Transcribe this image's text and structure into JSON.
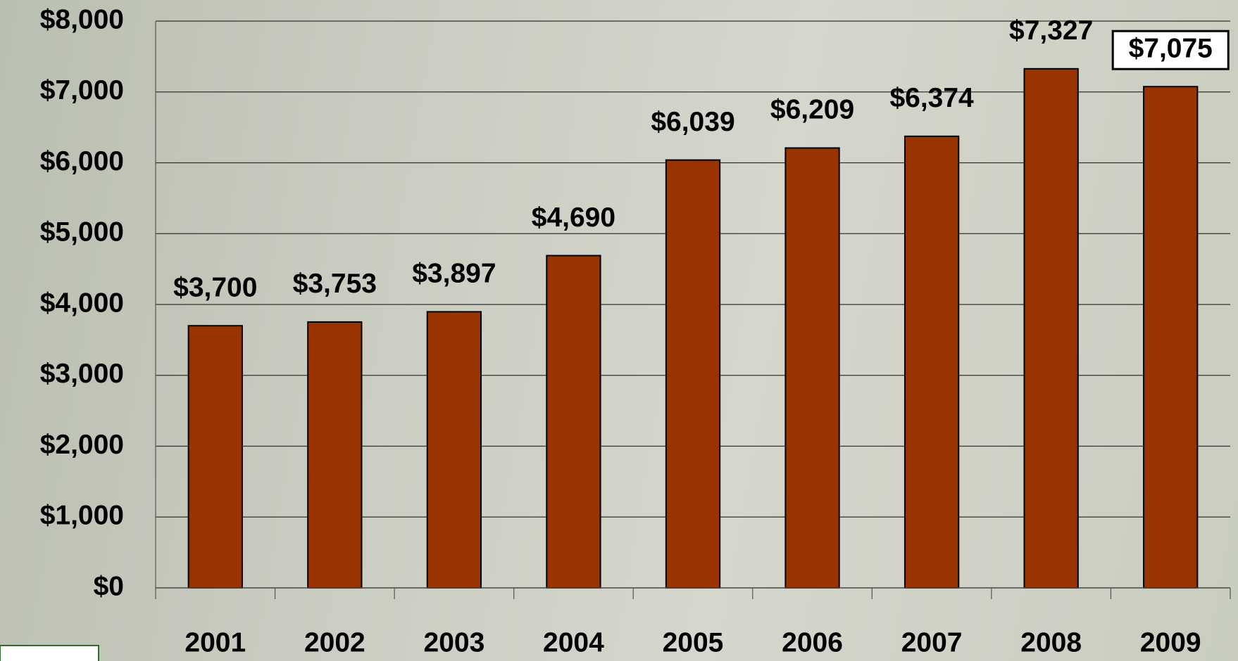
{
  "chart_data": {
    "type": "bar",
    "categories": [
      "2001",
      "2002",
      "2003",
      "2004",
      "2005",
      "2006",
      "2007",
      "2008",
      "2009"
    ],
    "values": [
      3700,
      3753,
      3897,
      4690,
      6039,
      6209,
      6374,
      7327,
      7075
    ],
    "value_labels": [
      "$3,700",
      "$3,753",
      "$3,897",
      "$4,690",
      "$6,039",
      "$6,209",
      "$6,374",
      "$7,327",
      "$7,075"
    ],
    "color": "#993300",
    "ylim": [
      0,
      8000
    ],
    "yticks": [
      {
        "value": 0,
        "label": "$0"
      },
      {
        "value": 1000,
        "label": "$1,000"
      },
      {
        "value": 2000,
        "label": "$2,000"
      },
      {
        "value": 3000,
        "label": "$3,000"
      },
      {
        "value": 4000,
        "label": "$4,000"
      },
      {
        "value": 5000,
        "label": "$5,000"
      },
      {
        "value": 6000,
        "label": "$6,000"
      },
      {
        "value": 7000,
        "label": "$7,000"
      },
      {
        "value": 8000,
        "label": "$8,000"
      }
    ],
    "grid": true
  }
}
